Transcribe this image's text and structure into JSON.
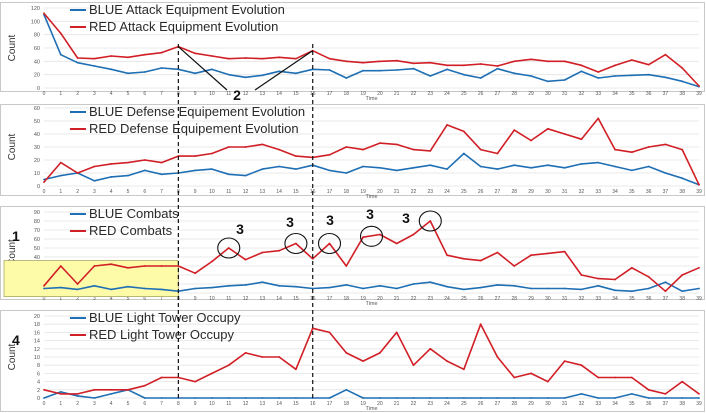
{
  "colors": {
    "blue": "#1f6fb4",
    "red": "#d11f26",
    "grid": "#e3e3e3",
    "frame": "#c8c8c8",
    "tick": "#555555",
    "highlight": "#fdfaa8",
    "highlight_border": "#a8a860"
  },
  "chart_data": [
    {
      "type": "line",
      "ylabel": "Count",
      "xlabel": "Time",
      "ylim": [
        0,
        120
      ],
      "yticks": [
        0,
        20,
        40,
        60,
        80,
        100,
        120
      ],
      "x": [
        0,
        1,
        2,
        3,
        4,
        5,
        6,
        7,
        8,
        9,
        10,
        11,
        12,
        13,
        14,
        15,
        16,
        17,
        18,
        19,
        20,
        21,
        22,
        23,
        24,
        25,
        26,
        27,
        28,
        29,
        30,
        31,
        32,
        33,
        34,
        35,
        36,
        37,
        38,
        39
      ],
      "legend_position": "top-left",
      "series": [
        {
          "name": "BLUE Attack Equipment Evolution",
          "color": "blue",
          "values": [
            110,
            50,
            38,
            33,
            28,
            22,
            24,
            30,
            28,
            22,
            28,
            20,
            16,
            19,
            25,
            22,
            28,
            27,
            15,
            26,
            26,
            27,
            29,
            18,
            28,
            20,
            15,
            29,
            22,
            18,
            10,
            12,
            25,
            15,
            18,
            19,
            20,
            16,
            10,
            2
          ]
        },
        {
          "name": "RED Attack Equipment Evolution",
          "color": "red",
          "values": [
            112,
            82,
            45,
            44,
            48,
            46,
            50,
            53,
            62,
            52,
            48,
            44,
            45,
            44,
            46,
            44,
            56,
            44,
            40,
            38,
            40,
            41,
            37,
            38,
            34,
            34,
            36,
            33,
            40,
            43,
            40,
            40,
            34,
            24,
            34,
            42,
            35,
            50,
            30,
            3
          ]
        }
      ]
    },
    {
      "type": "line",
      "ylabel": "Count",
      "xlabel": "Time",
      "ylim": [
        0,
        60
      ],
      "yticks": [
        0,
        10,
        20,
        30,
        40,
        50,
        60
      ],
      "x": [
        0,
        1,
        2,
        3,
        4,
        5,
        6,
        7,
        8,
        9,
        10,
        11,
        12,
        13,
        14,
        15,
        16,
        17,
        18,
        19,
        20,
        21,
        22,
        23,
        24,
        25,
        26,
        27,
        28,
        29,
        30,
        31,
        32,
        33,
        34,
        35,
        36,
        37,
        38,
        39
      ],
      "legend_position": "top-left",
      "series": [
        {
          "name": "BLUE Defense Equipement Evolution",
          "color": "blue",
          "values": [
            5,
            8,
            10,
            4,
            7,
            8,
            12,
            9,
            10,
            12,
            13,
            9,
            8,
            13,
            15,
            13,
            16,
            12,
            10,
            15,
            14,
            12,
            14,
            16,
            13,
            25,
            15,
            13,
            16,
            14,
            16,
            14,
            17,
            18,
            15,
            12,
            15,
            10,
            6,
            1
          ]
        },
        {
          "name": "RED Defense Equipement Evolution",
          "color": "red",
          "values": [
            3,
            18,
            10,
            15,
            17,
            18,
            20,
            18,
            23,
            23,
            25,
            30,
            30,
            32,
            28,
            23,
            22,
            24,
            30,
            28,
            33,
            32,
            28,
            27,
            47,
            42,
            28,
            25,
            43,
            35,
            44,
            40,
            36,
            52,
            28,
            26,
            30,
            32,
            28,
            1
          ]
        }
      ]
    },
    {
      "type": "line",
      "ylabel": "Count",
      "xlabel": "Time",
      "ylim": [
        0,
        90
      ],
      "yticks": [
        0,
        10,
        20,
        30,
        40,
        50,
        60,
        70,
        80,
        90
      ],
      "x": [
        0,
        1,
        2,
        3,
        4,
        5,
        6,
        7,
        8,
        9,
        10,
        11,
        12,
        13,
        14,
        15,
        16,
        17,
        18,
        19,
        20,
        21,
        22,
        23,
        24,
        25,
        26,
        27,
        28,
        29,
        30,
        31,
        32,
        33,
        34,
        35,
        36,
        37,
        38,
        39
      ],
      "legend_position": "top-left",
      "series": [
        {
          "name": "BLUE Combats",
          "color": "blue",
          "values": [
            5,
            6,
            4,
            8,
            4,
            7,
            5,
            4,
            2,
            5,
            6,
            8,
            9,
            12,
            8,
            7,
            5,
            6,
            9,
            5,
            8,
            5,
            10,
            12,
            7,
            4,
            6,
            9,
            8,
            5,
            5,
            5,
            4,
            8,
            3,
            2,
            5,
            12,
            2,
            5
          ]
        },
        {
          "name": "RED Combats",
          "color": "red",
          "values": [
            8,
            30,
            10,
            30,
            32,
            28,
            30,
            30,
            30,
            22,
            35,
            50,
            37,
            45,
            47,
            55,
            38,
            55,
            30,
            62,
            65,
            55,
            65,
            80,
            42,
            38,
            36,
            45,
            30,
            42,
            44,
            46,
            20,
            16,
            15,
            28,
            18,
            2,
            20,
            28
          ]
        }
      ]
    },
    {
      "type": "line",
      "ylabel": "Count",
      "xlabel": "Time",
      "ylim": [
        0,
        20
      ],
      "yticks": [
        0,
        2,
        4,
        6,
        8,
        10,
        12,
        14,
        16,
        18,
        20
      ],
      "x": [
        0,
        1,
        2,
        3,
        4,
        5,
        6,
        7,
        8,
        9,
        10,
        11,
        12,
        13,
        14,
        15,
        16,
        17,
        18,
        19,
        20,
        21,
        22,
        23,
        24,
        25,
        26,
        27,
        28,
        29,
        30,
        31,
        32,
        33,
        34,
        35,
        36,
        37,
        38,
        39
      ],
      "legend_position": "top-left",
      "series": [
        {
          "name": "BLUE Light Tower Occupy",
          "color": "blue",
          "values": [
            0,
            1.5,
            0.5,
            0,
            1,
            2,
            0,
            0,
            0,
            0,
            0,
            0,
            0,
            0,
            0,
            0,
            0,
            0,
            2,
            0,
            0,
            0,
            0,
            0,
            0,
            0,
            0,
            0,
            0,
            0,
            0,
            0,
            1,
            0,
            0,
            1,
            0,
            0,
            0,
            0
          ]
        },
        {
          "name": "RED Light Tower Occupy",
          "color": "red",
          "values": [
            2,
            1,
            1,
            2,
            2,
            2,
            3,
            5,
            5,
            4,
            6,
            8,
            11,
            10,
            10,
            7,
            17,
            16,
            11,
            9,
            11,
            16,
            8,
            12,
            9,
            7,
            18,
            10,
            5,
            6,
            4,
            9,
            8,
            5,
            5,
            5,
            2,
            1,
            4,
            1
          ]
        }
      ]
    }
  ],
  "annotations": {
    "label_1": "1",
    "label_2": "2",
    "label_3": "3",
    "label_4": "4"
  }
}
